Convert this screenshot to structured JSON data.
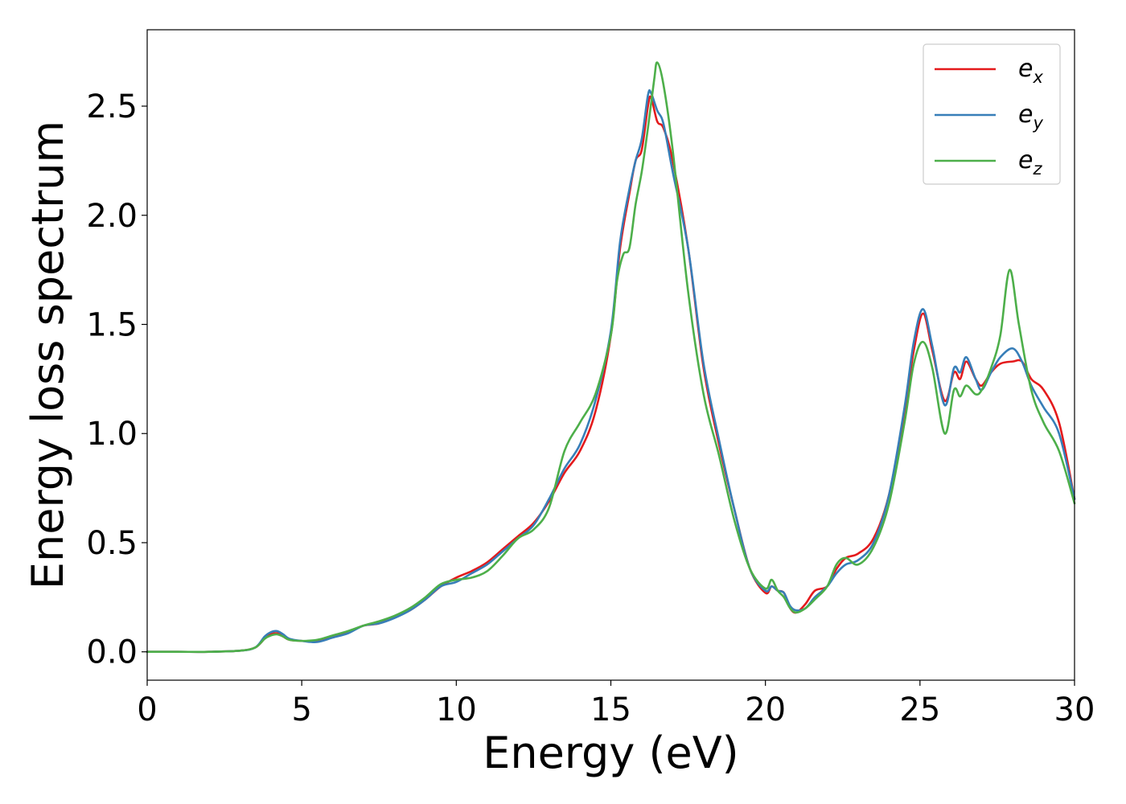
{
  "chart_data": {
    "type": "line",
    "xlabel": "Energy (eV)",
    "ylabel": "Energy loss spectrum",
    "xlim": [
      0,
      30
    ],
    "ylim": [
      -0.13,
      2.85
    ],
    "xticks": [
      0,
      5,
      10,
      15,
      20,
      25,
      30
    ],
    "xtick_labels": [
      "0",
      "5",
      "10",
      "15",
      "20",
      "25",
      "30"
    ],
    "yticks": [
      0.0,
      0.5,
      1.0,
      1.5,
      2.0,
      2.5
    ],
    "ytick_labels": [
      "0.0",
      "0.5",
      "1.0",
      "1.5",
      "2.0",
      "2.5"
    ],
    "grid": false,
    "legend_position": "top-right",
    "series": [
      {
        "name": "e_x",
        "legend_base": "e",
        "legend_sub": "x",
        "color": "#e41a1c",
        "x": [
          0,
          1,
          2,
          3,
          3.5,
          3.8,
          4.0,
          4.2,
          4.4,
          4.6,
          5.0,
          5.5,
          6.0,
          6.5,
          7.0,
          7.5,
          8.0,
          8.5,
          9.0,
          9.5,
          10.0,
          10.5,
          11.0,
          11.5,
          12.0,
          12.5,
          13.0,
          13.5,
          14.0,
          14.5,
          15.0,
          15.3,
          15.6,
          15.8,
          16.0,
          16.2,
          16.3,
          16.5,
          16.7,
          17.0,
          17.5,
          18.0,
          18.5,
          19.0,
          19.5,
          20.0,
          20.2,
          20.4,
          20.6,
          20.8,
          21.0,
          21.3,
          21.6,
          22.0,
          22.3,
          22.6,
          23.0,
          23.5,
          24.0,
          24.5,
          24.8,
          25.1,
          25.4,
          25.8,
          26.1,
          26.3,
          26.5,
          26.8,
          27.0,
          27.3,
          27.6,
          28.0,
          28.3,
          28.6,
          29.0,
          29.5,
          30.0
        ],
        "y": [
          0.0,
          0.0,
          0.0,
          0.005,
          0.02,
          0.06,
          0.08,
          0.085,
          0.07,
          0.055,
          0.05,
          0.05,
          0.07,
          0.09,
          0.12,
          0.13,
          0.16,
          0.19,
          0.24,
          0.3,
          0.34,
          0.37,
          0.41,
          0.47,
          0.53,
          0.59,
          0.69,
          0.82,
          0.92,
          1.1,
          1.45,
          1.85,
          2.1,
          2.25,
          2.3,
          2.5,
          2.54,
          2.43,
          2.4,
          2.25,
          1.85,
          1.3,
          0.95,
          0.65,
          0.38,
          0.27,
          0.3,
          0.28,
          0.27,
          0.2,
          0.18,
          0.22,
          0.28,
          0.3,
          0.38,
          0.43,
          0.45,
          0.52,
          0.72,
          1.1,
          1.38,
          1.55,
          1.38,
          1.15,
          1.28,
          1.25,
          1.33,
          1.25,
          1.22,
          1.28,
          1.32,
          1.33,
          1.33,
          1.25,
          1.2,
          1.05,
          0.7
        ]
      },
      {
        "name": "e_y",
        "legend_base": "e",
        "legend_sub": "y",
        "color": "#377eb8",
        "x": [
          0,
          1,
          2,
          3,
          3.5,
          3.8,
          4.0,
          4.2,
          4.4,
          4.6,
          5.0,
          5.5,
          6.0,
          6.5,
          7.0,
          7.5,
          8.0,
          8.5,
          9.0,
          9.5,
          10.0,
          10.5,
          11.0,
          11.5,
          12.0,
          12.5,
          13.0,
          13.5,
          14.0,
          14.5,
          15.0,
          15.3,
          15.6,
          15.8,
          16.0,
          16.2,
          16.3,
          16.5,
          16.7,
          17.0,
          17.5,
          18.0,
          18.5,
          19.0,
          19.5,
          20.0,
          20.2,
          20.4,
          20.6,
          20.8,
          21.0,
          21.3,
          21.6,
          22.0,
          22.3,
          22.6,
          23.0,
          23.5,
          24.0,
          24.5,
          24.8,
          25.1,
          25.4,
          25.8,
          26.1,
          26.3,
          26.5,
          26.8,
          27.0,
          27.3,
          27.6,
          28.0,
          28.3,
          28.6,
          29.0,
          29.5,
          30.0
        ],
        "y": [
          0.0,
          0.0,
          0.0,
          0.005,
          0.02,
          0.07,
          0.09,
          0.095,
          0.08,
          0.06,
          0.05,
          0.045,
          0.065,
          0.085,
          0.12,
          0.13,
          0.155,
          0.19,
          0.24,
          0.3,
          0.32,
          0.36,
          0.4,
          0.46,
          0.52,
          0.58,
          0.7,
          0.84,
          0.95,
          1.15,
          1.47,
          1.88,
          2.12,
          2.25,
          2.35,
          2.55,
          2.56,
          2.48,
          2.42,
          2.2,
          1.85,
          1.32,
          0.97,
          0.65,
          0.38,
          0.28,
          0.3,
          0.28,
          0.27,
          0.21,
          0.19,
          0.2,
          0.25,
          0.3,
          0.36,
          0.4,
          0.42,
          0.5,
          0.72,
          1.12,
          1.42,
          1.57,
          1.4,
          1.13,
          1.3,
          1.28,
          1.35,
          1.25,
          1.2,
          1.28,
          1.35,
          1.39,
          1.33,
          1.22,
          1.12,
          1.0,
          0.7
        ]
      },
      {
        "name": "e_z",
        "legend_base": "e",
        "legend_sub": "z",
        "color": "#4daf4a",
        "x": [
          0,
          1,
          2,
          3,
          3.5,
          3.8,
          4.0,
          4.2,
          4.4,
          4.6,
          5.0,
          5.5,
          6.0,
          6.5,
          7.0,
          7.5,
          8.0,
          8.5,
          9.0,
          9.5,
          10.0,
          10.5,
          11.0,
          11.5,
          12.0,
          12.5,
          13.0,
          13.5,
          14.0,
          14.5,
          15.0,
          15.2,
          15.4,
          15.6,
          15.8,
          16.0,
          16.2,
          16.4,
          16.5,
          16.7,
          17.0,
          17.5,
          18.0,
          18.5,
          19.0,
          19.5,
          20.0,
          20.2,
          20.4,
          20.6,
          20.8,
          21.0,
          21.3,
          21.6,
          22.0,
          22.3,
          22.6,
          23.0,
          23.5,
          24.0,
          24.5,
          24.8,
          25.1,
          25.4,
          25.8,
          26.1,
          26.3,
          26.5,
          26.8,
          27.0,
          27.3,
          27.6,
          27.9,
          28.2,
          28.6,
          29.0,
          29.5,
          30.0
        ],
        "y": [
          0.0,
          0.0,
          0.0,
          0.005,
          0.02,
          0.06,
          0.075,
          0.08,
          0.07,
          0.055,
          0.05,
          0.055,
          0.075,
          0.095,
          0.12,
          0.14,
          0.165,
          0.2,
          0.25,
          0.31,
          0.33,
          0.34,
          0.37,
          0.44,
          0.52,
          0.56,
          0.66,
          0.92,
          1.05,
          1.18,
          1.45,
          1.7,
          1.82,
          1.85,
          2.05,
          2.2,
          2.4,
          2.62,
          2.7,
          2.6,
          2.3,
          1.65,
          1.18,
          0.9,
          0.6,
          0.38,
          0.29,
          0.33,
          0.28,
          0.25,
          0.2,
          0.18,
          0.2,
          0.24,
          0.3,
          0.4,
          0.43,
          0.4,
          0.48,
          0.68,
          1.05,
          1.32,
          1.42,
          1.3,
          1.0,
          1.2,
          1.17,
          1.22,
          1.18,
          1.2,
          1.3,
          1.45,
          1.75,
          1.5,
          1.2,
          1.05,
          0.92,
          0.68
        ]
      }
    ]
  }
}
